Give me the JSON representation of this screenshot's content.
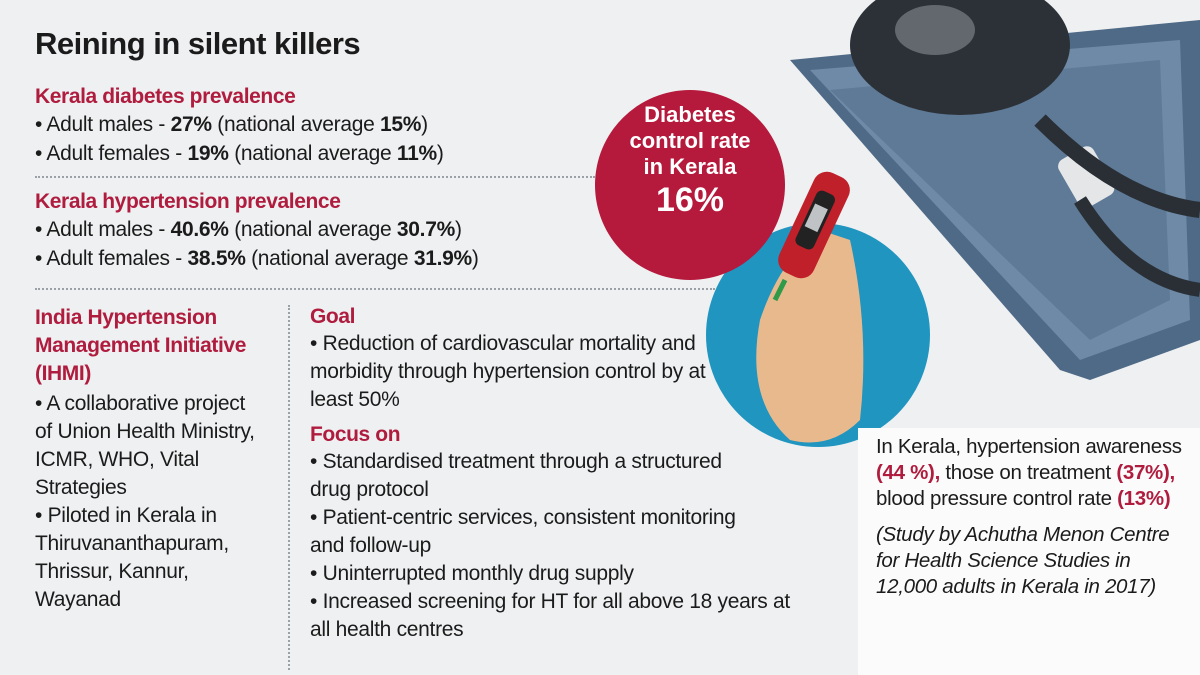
{
  "title": "Reining in silent killers",
  "diabetes": {
    "heading": "Kerala diabetes prevalence",
    "items": [
      {
        "label": "• Adult males - ",
        "value": "27%",
        "pre": " (national average ",
        "national": "15%",
        "post": ")"
      },
      {
        "label": "• Adult females - ",
        "value": "19%",
        "pre": " (national average ",
        "national": "11%",
        "post": ")"
      }
    ]
  },
  "hypertension": {
    "heading": "Kerala hypertension prevalence",
    "items": [
      {
        "label": "• Adult males - ",
        "value": "40.6%",
        "pre": " (national average ",
        "national": "30.7%",
        "post": ")"
      },
      {
        "label": "• Adult females - ",
        "value": "38.5%",
        "pre": " (national average ",
        "national": "31.9%",
        "post": ")"
      }
    ]
  },
  "ihmi": {
    "heading": "India Hypertension Management Initiative (IHMI)",
    "items": [
      "• A collaborative project of Union Health Ministry, ICMR, WHO, Vital Strategies",
      "• Piloted in Kerala in Thiruvananthapuram, Thrissur, Kannur, Wayanad"
    ]
  },
  "goal": {
    "heading": "Goal",
    "items": [
      "• Reduction of cardiovascular mortality and morbidity through hypertension control by at least 50%"
    ]
  },
  "focus": {
    "heading": "Focus on",
    "items": [
      "• Standardised treatment through a structured drug protocol",
      "• Patient-centric services, consistent monitoring and follow-up",
      "• Uninterrupted monthly drug supply",
      "• Increased screening for HT for all above 18 years at all health centres"
    ]
  },
  "callout": {
    "line1": "Diabetes",
    "line2": "control rate",
    "line3": "in Kerala",
    "value": "16%"
  },
  "study": {
    "t1": "In Kerala, hypertension awareness ",
    "v1": "(44 %),",
    "t2": " those on treatment ",
    "v2": "(37%),",
    "t3": " blood pressure control rate ",
    "v3": "(13%)",
    "source": "(Study by Achutha Menon Centre for Health Science Studies in 12,000 adults in Kerala in 2017)"
  },
  "colors": {
    "accent": "#b5193b",
    "blue": "#1f95c0",
    "background": "#eef0f2"
  },
  "icons": [
    "blood-pressure-cuff-illustration",
    "glucometer-hand-illustration"
  ]
}
